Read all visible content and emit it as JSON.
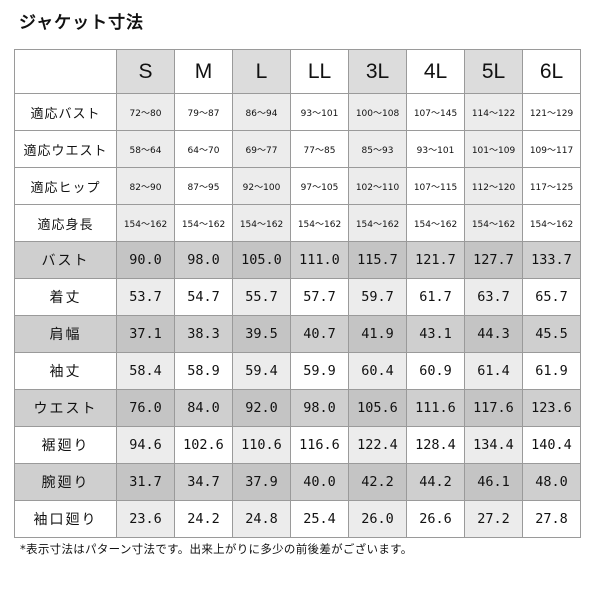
{
  "title": "ジャケット寸法",
  "sizes": [
    "S",
    "M",
    "L",
    "LL",
    "3L",
    "4L",
    "5L",
    "6L"
  ],
  "fit_rows": [
    {
      "label": "適応バスト",
      "values": [
        "72～80",
        "79～87",
        "86～94",
        "93～101",
        "100～108",
        "107～145",
        "114～122",
        "121～129"
      ]
    },
    {
      "label": "適応ウエスト",
      "values": [
        "58～64",
        "64～70",
        "69～77",
        "77～85",
        "85～93",
        "93～101",
        "101～109",
        "109～117"
      ]
    },
    {
      "label": "適応ヒップ",
      "values": [
        "82～90",
        "87～95",
        "92～100",
        "97～105",
        "102～110",
        "107～115",
        "112～120",
        "117～125"
      ]
    },
    {
      "label": "適応身長",
      "values": [
        "154～162",
        "154～162",
        "154～162",
        "154～162",
        "154～162",
        "154～162",
        "154～162",
        "154～162"
      ]
    }
  ],
  "measure_rows": [
    {
      "label": "バスト",
      "values": [
        "90.0",
        "98.0",
        "105.0",
        "111.0",
        "115.7",
        "121.7",
        "127.7",
        "133.7"
      ]
    },
    {
      "label": "着丈",
      "values": [
        "53.7",
        "54.7",
        "55.7",
        "57.7",
        "59.7",
        "61.7",
        "63.7",
        "65.7"
      ]
    },
    {
      "label": "肩幅",
      "values": [
        "37.1",
        "38.3",
        "39.5",
        "40.7",
        "41.9",
        "43.1",
        "44.3",
        "45.5"
      ]
    },
    {
      "label": "袖丈",
      "values": [
        "58.4",
        "58.9",
        "59.4",
        "59.9",
        "60.4",
        "60.9",
        "61.4",
        "61.9"
      ]
    },
    {
      "label": "ウエスト",
      "values": [
        "76.0",
        "84.0",
        "92.0",
        "98.0",
        "105.6",
        "111.6",
        "117.6",
        "123.6"
      ]
    },
    {
      "label": "裾廻り",
      "values": [
        "94.6",
        "102.6",
        "110.6",
        "116.6",
        "122.4",
        "128.4",
        "134.4",
        "140.4"
      ]
    },
    {
      "label": "腕廻り",
      "values": [
        "31.7",
        "34.7",
        "37.9",
        "40.0",
        "42.2",
        "44.2",
        "46.1",
        "48.0"
      ]
    },
    {
      "label": "袖口廻り",
      "values": [
        "23.6",
        "24.2",
        "24.8",
        "25.4",
        "26.0",
        "26.6",
        "27.2",
        "27.8"
      ]
    }
  ],
  "note": "*表示寸法はパターン寸法です。出来上がりに多少の前後差がございます。",
  "colors": {
    "header_shade": "#dcdcdc",
    "row_shade": "#cfcfcf",
    "column_shade": "#ececec",
    "border": "#9a9a9a"
  }
}
